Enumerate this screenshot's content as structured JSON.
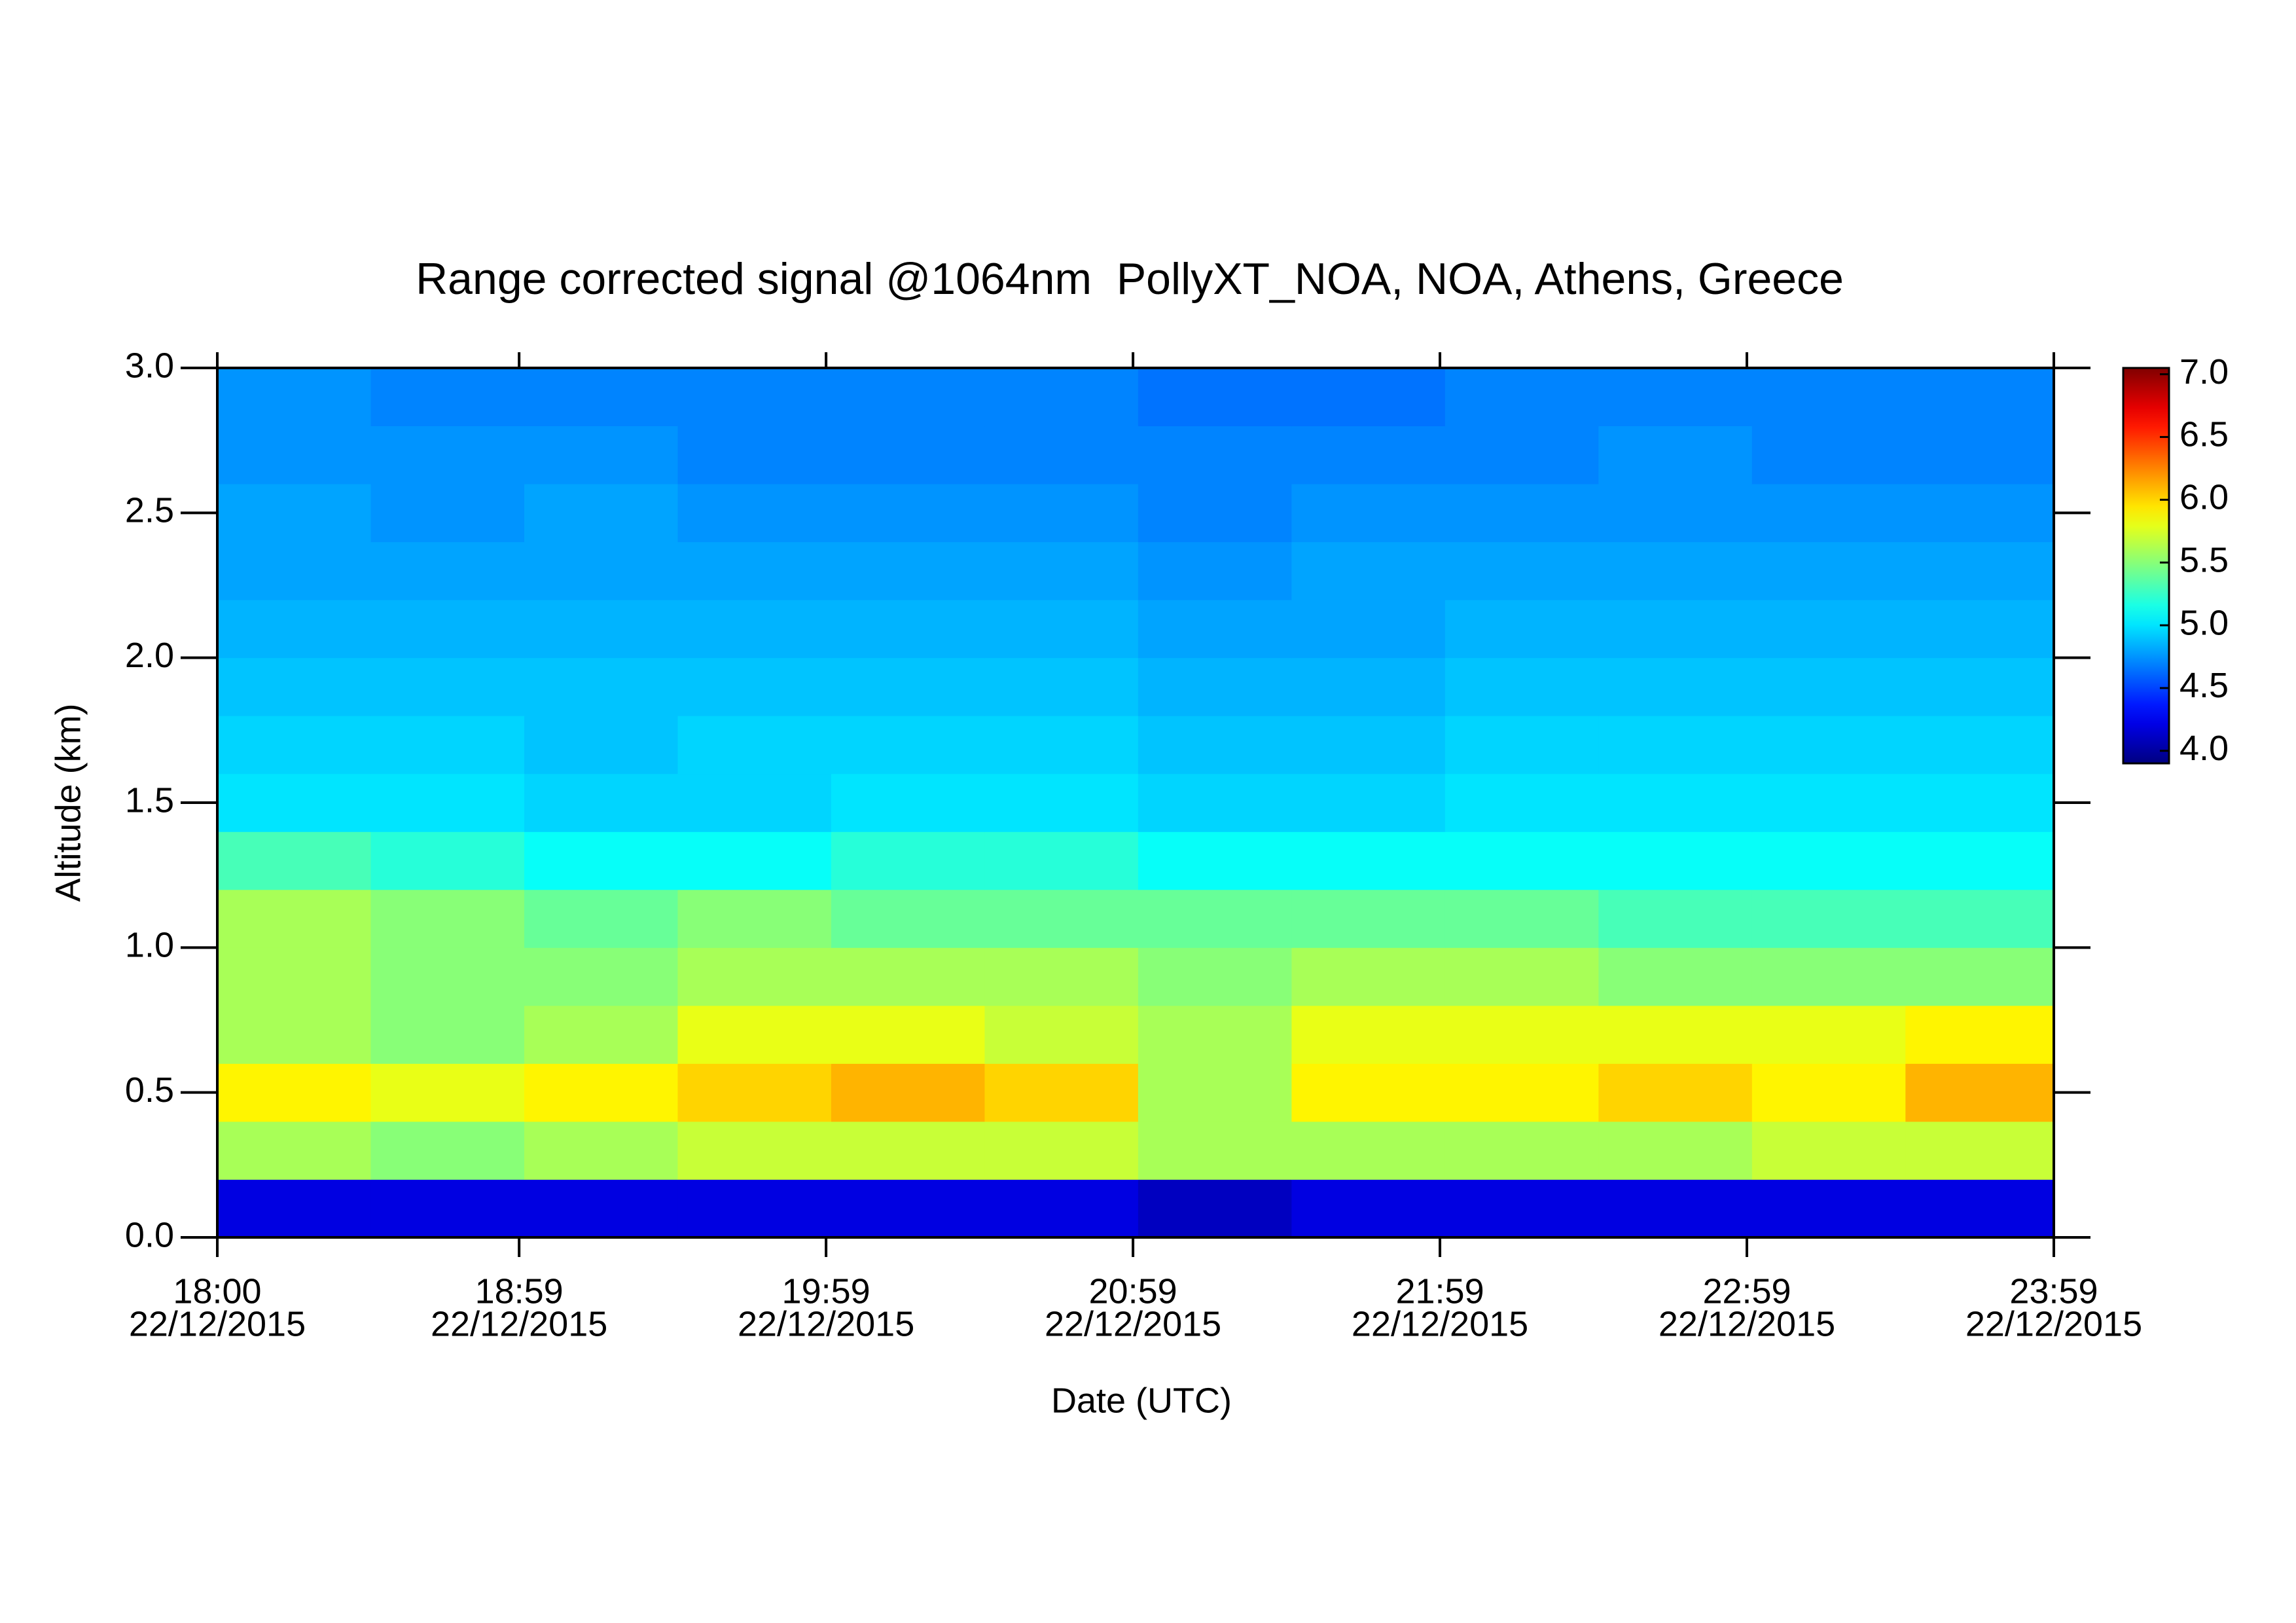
{
  "chart_data": {
    "type": "heatmap",
    "title": "Range corrected signal @1064nm  PollyXT_NOA, NOA, Athens, Greece",
    "xlabel": "Date (UTC)",
    "ylabel": "Altitude (km)",
    "colormap": "jet",
    "x": [
      "18:00",
      "18:30",
      "19:00",
      "19:30",
      "20:00",
      "20:30",
      "21:00",
      "21:30",
      "22:00",
      "22:30",
      "23:00",
      "23:30"
    ],
    "xlim": [
      "18:00",
      "23:59"
    ],
    "xticks": [
      {
        "time": "18:00",
        "date": "22/12/2015"
      },
      {
        "time": "18:59",
        "date": "22/12/2015"
      },
      {
        "time": "19:59",
        "date": "22/12/2015"
      },
      {
        "time": "20:59",
        "date": "22/12/2015"
      },
      {
        "time": "21:59",
        "date": "22/12/2015"
      },
      {
        "time": "22:59",
        "date": "22/12/2015"
      },
      {
        "time": "23:59",
        "date": "22/12/2015"
      }
    ],
    "y": [
      0,
      0.2,
      0.4,
      0.6,
      0.8,
      1.0,
      1.2,
      1.4,
      1.6,
      1.8,
      2.0,
      2.2,
      2.4,
      2.6,
      2.8
    ],
    "ylim": [
      0,
      3
    ],
    "yticks": [
      {
        "value": 0,
        "label": "0.0"
      },
      0.5,
      {
        "value": 1,
        "label": "1.0"
      },
      1.5,
      {
        "value": 2,
        "label": "2.0"
      },
      2.5,
      {
        "value": 3,
        "label": "3.0"
      }
    ],
    "z": [
      [
        4.2,
        4.2,
        4.2,
        4.2,
        4.2,
        4.2,
        4.1,
        4.2,
        4.2,
        4.2,
        4.2,
        4.2
      ],
      [
        5.6,
        5.5,
        5.6,
        5.7,
        5.7,
        5.7,
        5.6,
        5.6,
        5.6,
        5.6,
        5.7,
        5.7
      ],
      [
        5.9,
        5.8,
        5.9,
        6.0,
        6.1,
        6.0,
        5.6,
        5.9,
        5.9,
        6.0,
        5.9,
        6.1
      ],
      [
        5.6,
        5.5,
        5.6,
        5.8,
        5.8,
        5.7,
        5.6,
        5.8,
        5.8,
        5.8,
        5.8,
        5.9
      ],
      [
        5.6,
        5.5,
        5.5,
        5.6,
        5.6,
        5.6,
        5.5,
        5.6,
        5.6,
        5.5,
        5.5,
        5.5
      ],
      [
        5.6,
        5.5,
        5.4,
        5.5,
        5.4,
        5.4,
        5.4,
        5.4,
        5.4,
        5.3,
        5.3,
        5.3
      ],
      [
        5.3,
        5.2,
        5.1,
        5.1,
        5.2,
        5.2,
        5.1,
        5.1,
        5.1,
        5.1,
        5.1,
        5.1
      ],
      [
        5.0,
        5.0,
        4.95,
        4.95,
        5.0,
        5.0,
        4.95,
        4.95,
        5.0,
        5.0,
        5.0,
        5.0
      ],
      [
        4.95,
        4.95,
        4.9,
        4.95,
        4.95,
        4.95,
        4.9,
        4.9,
        4.95,
        4.95,
        4.95,
        4.95
      ],
      [
        4.9,
        4.9,
        4.9,
        4.9,
        4.9,
        4.9,
        4.85,
        4.85,
        4.9,
        4.9,
        4.9,
        4.9
      ],
      [
        4.85,
        4.85,
        4.85,
        4.85,
        4.85,
        4.85,
        4.8,
        4.8,
        4.85,
        4.85,
        4.85,
        4.85
      ],
      [
        4.8,
        4.8,
        4.8,
        4.8,
        4.8,
        4.8,
        4.75,
        4.8,
        4.8,
        4.8,
        4.8,
        4.8
      ],
      [
        4.8,
        4.75,
        4.8,
        4.75,
        4.75,
        4.75,
        4.7,
        4.75,
        4.75,
        4.75,
        4.75,
        4.75
      ],
      [
        4.75,
        4.75,
        4.75,
        4.7,
        4.7,
        4.7,
        4.7,
        4.7,
        4.7,
        4.75,
        4.7,
        4.7
      ],
      [
        4.75,
        4.7,
        4.7,
        4.7,
        4.7,
        4.7,
        4.65,
        4.65,
        4.7,
        4.7,
        4.7,
        4.7
      ]
    ],
    "zlim": [
      3.9,
      7.05
    ],
    "zticks": [
      {
        "value": 4,
        "label": "4.0"
      },
      4.5,
      {
        "value": 5,
        "label": "5.0"
      },
      5.5,
      {
        "value": 6,
        "label": "6.0"
      },
      6.5,
      {
        "value": 7,
        "label": "7.0"
      }
    ]
  }
}
